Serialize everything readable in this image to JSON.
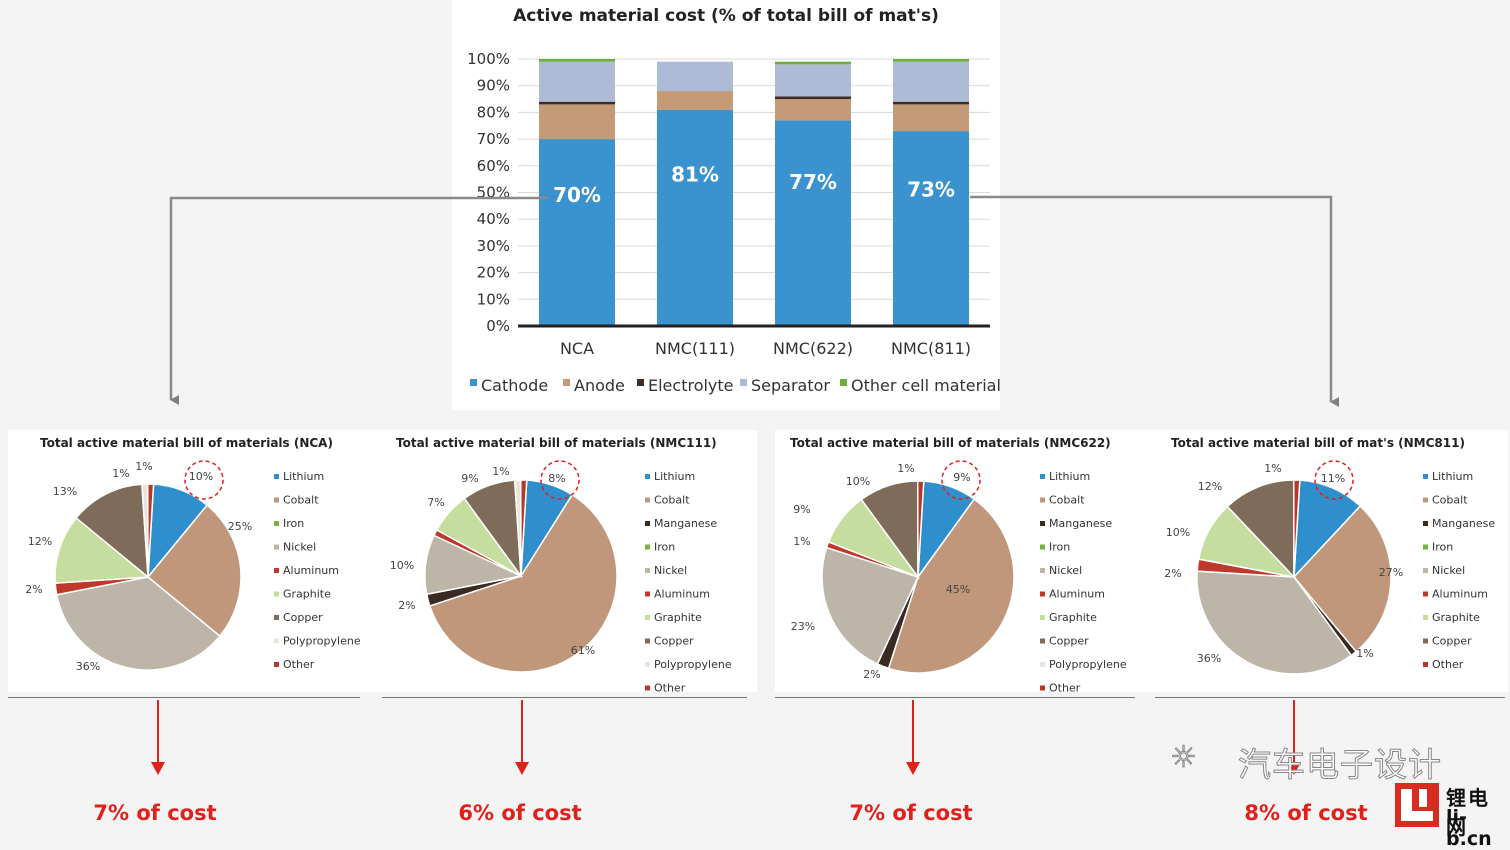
{
  "bar_chart": {
    "type": "bar",
    "title": "Active material cost (% of total bill of mat's)",
    "categories": [
      "NCA",
      "NMC(111)",
      "NMC(622)",
      "NMC(811)"
    ],
    "ylim": [
      0,
      100
    ],
    "yticks": [
      "0%",
      "10%",
      "20%",
      "30%",
      "40%",
      "50%",
      "60%",
      "70%",
      "80%",
      "90%",
      "100%"
    ],
    "series": [
      {
        "name": "Cathode",
        "color": "#3a93cf",
        "values": [
          70,
          81,
          77,
          73
        ]
      },
      {
        "name": "Anode",
        "color": "#c49a77",
        "values": [
          13,
          7,
          8,
          10
        ]
      },
      {
        "name": "Electrolyte",
        "color": "#3e2d26",
        "values": [
          1,
          0,
          1,
          1
        ]
      },
      {
        "name": "Separator",
        "color": "#aebbd6",
        "values": [
          15,
          11,
          12,
          15
        ]
      },
      {
        "name": "Other cell material",
        "color": "#6cae3c",
        "values": [
          1,
          0,
          1,
          1
        ]
      }
    ],
    "bar_labels": [
      "70%",
      "81%",
      "77%",
      "73%"
    ],
    "legend": "bottom"
  },
  "chart_data": [
    {
      "type": "pie",
      "title": "Total active material bill of materials (NCA)",
      "labels": [
        "Lithium",
        "Cobalt",
        "Iron",
        "Nickel",
        "Aluminum",
        "Graphite",
        "Copper",
        "Polypropylene",
        "Other"
      ],
      "values": [
        10,
        25,
        0,
        36,
        2,
        12,
        13,
        1,
        1
      ],
      "data_labels": [
        "10%",
        "25%",
        "",
        "36%",
        "2%",
        "12%",
        "13%",
        "1%",
        "1%"
      ],
      "legend": "right"
    },
    {
      "type": "pie",
      "title": "Total active material bill of materials  (NMC111)",
      "labels": [
        "Lithium",
        "Cobalt",
        "Manganese",
        "Iron",
        "Nickel",
        "Aluminum",
        "Graphite",
        "Copper",
        "Polypropylene",
        "Other"
      ],
      "values": [
        8,
        61,
        2,
        0,
        10,
        1,
        7,
        9,
        1,
        1
      ],
      "data_labels": [
        "8%",
        "61%",
        "2%",
        "",
        "10%",
        "",
        "7%",
        "9%",
        "1%",
        ""
      ],
      "legend": "right"
    },
    {
      "type": "pie",
      "title": "Total active material bill of materials (NMC622)",
      "labels": [
        "Lithium",
        "Cobalt",
        "Manganese",
        "Iron",
        "Nickel",
        "Aluminum",
        "Graphite",
        "Copper",
        "Polypropylene",
        "Other"
      ],
      "values": [
        9,
        45,
        2,
        0,
        23,
        1,
        9,
        10,
        0,
        1
      ],
      "data_labels": [
        "9%",
        "45%",
        "2%",
        "",
        "23%",
        "1%",
        "9%",
        "10%",
        "",
        "1%"
      ],
      "legend": "right"
    },
    {
      "type": "pie",
      "title": "Total active material bill of mat's (NMC811)",
      "labels": [
        "Lithium",
        "Cobalt",
        "Manganese",
        "Iron",
        "Nickel",
        "Aluminum",
        "Graphite",
        "Copper",
        "Other"
      ],
      "values": [
        11,
        27,
        1,
        0,
        36,
        2,
        10,
        12,
        1
      ],
      "data_labels": [
        "11%",
        "27%",
        "1%",
        "",
        "36%",
        "2%",
        "10%",
        "12%",
        "1%"
      ],
      "legend": "right"
    }
  ],
  "colors": {
    "Lithium": "#2f8fcc",
    "Cobalt": "#c0977a",
    "Manganese": "#3a2a24",
    "Iron": "#7ab043",
    "Nickel": "#bdb5a8",
    "Aluminum": "#c0382b",
    "Graphite": "#c5dea0",
    "Copper": "#7e6b59",
    "Polypropylene": "#ece4d8",
    "Other": "#b5382a"
  },
  "costs": [
    "7% of cost",
    "6% of cost",
    "7% of cost",
    "8% of cost"
  ],
  "watermark": {
    "text": "汽车电子设计",
    "icon": "wechat-icon"
  },
  "logo": {
    "cn": "锂电网",
    "en": "li-b.cn"
  }
}
